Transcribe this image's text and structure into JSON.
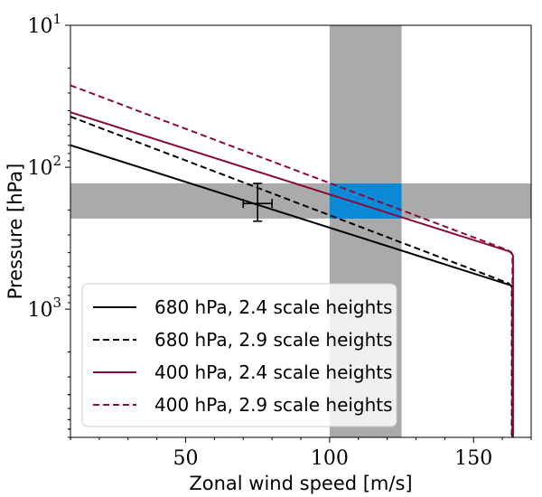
{
  "chart_data": {
    "type": "line",
    "xlabel": "Zonal wind speed [m/s]",
    "ylabel": "Pressure [hPa]",
    "xlim": [
      10,
      170
    ],
    "ylim": [
      8000,
      10
    ],
    "yscale": "log",
    "x_ticks": [
      {
        "value": 50,
        "label": "50"
      },
      {
        "value": 100,
        "label": "100"
      },
      {
        "value": 150,
        "label": "150"
      }
    ],
    "y_ticks": [
      {
        "value": 10,
        "base": "10",
        "exp": "1"
      },
      {
        "value": 100,
        "base": "10",
        "exp": "2"
      },
      {
        "value": 1000,
        "base": "10",
        "exp": "3"
      }
    ],
    "bands": [
      {
        "name": "wind-band",
        "axis": "x",
        "range": [
          100,
          125
        ],
        "color": "#aaaaaa"
      },
      {
        "name": "pressure-band",
        "axis": "y",
        "range": [
          130,
          230
        ],
        "color": "#aaaaaa"
      },
      {
        "name": "overlap-region",
        "axis": "xy",
        "xrange": [
          100,
          125
        ],
        "yrange": [
          130,
          230
        ],
        "color": "#0a8ad6"
      }
    ],
    "error_point": {
      "x": 75,
      "y": 180,
      "x_range": [
        70,
        80
      ],
      "y_range": [
        130,
        240
      ]
    },
    "series": [
      {
        "name": "680 hPa, 2.4 scale heights",
        "color": "#000000",
        "dash": "solid",
        "points": [
          [
            10,
            70
          ],
          [
            163,
            680
          ],
          [
            163.5,
            720
          ],
          [
            163.5,
            8000
          ]
        ]
      },
      {
        "name": "680 hPa, 2.9 scale heights",
        "color": "#000000",
        "dash": "dashed",
        "points": [
          [
            10,
            44
          ],
          [
            162,
            655
          ],
          [
            163.3,
            690
          ],
          [
            163.3,
            8000
          ]
        ]
      },
      {
        "name": "400 hPa, 2.4 scale heights",
        "color": "#8b0a3b",
        "dash": "solid",
        "points": [
          [
            10,
            41
          ],
          [
            163,
            395
          ],
          [
            163.7,
            420
          ],
          [
            163.7,
            8000
          ]
        ]
      },
      {
        "name": "400 hPa, 2.9 scale heights",
        "color": "#8b0a3b",
        "dash": "dashed",
        "points": [
          [
            10,
            26.5
          ],
          [
            162,
            385
          ],
          [
            163.5,
            410
          ],
          [
            163.5,
            8000
          ]
        ]
      }
    ],
    "legend_position": "lower-left"
  }
}
